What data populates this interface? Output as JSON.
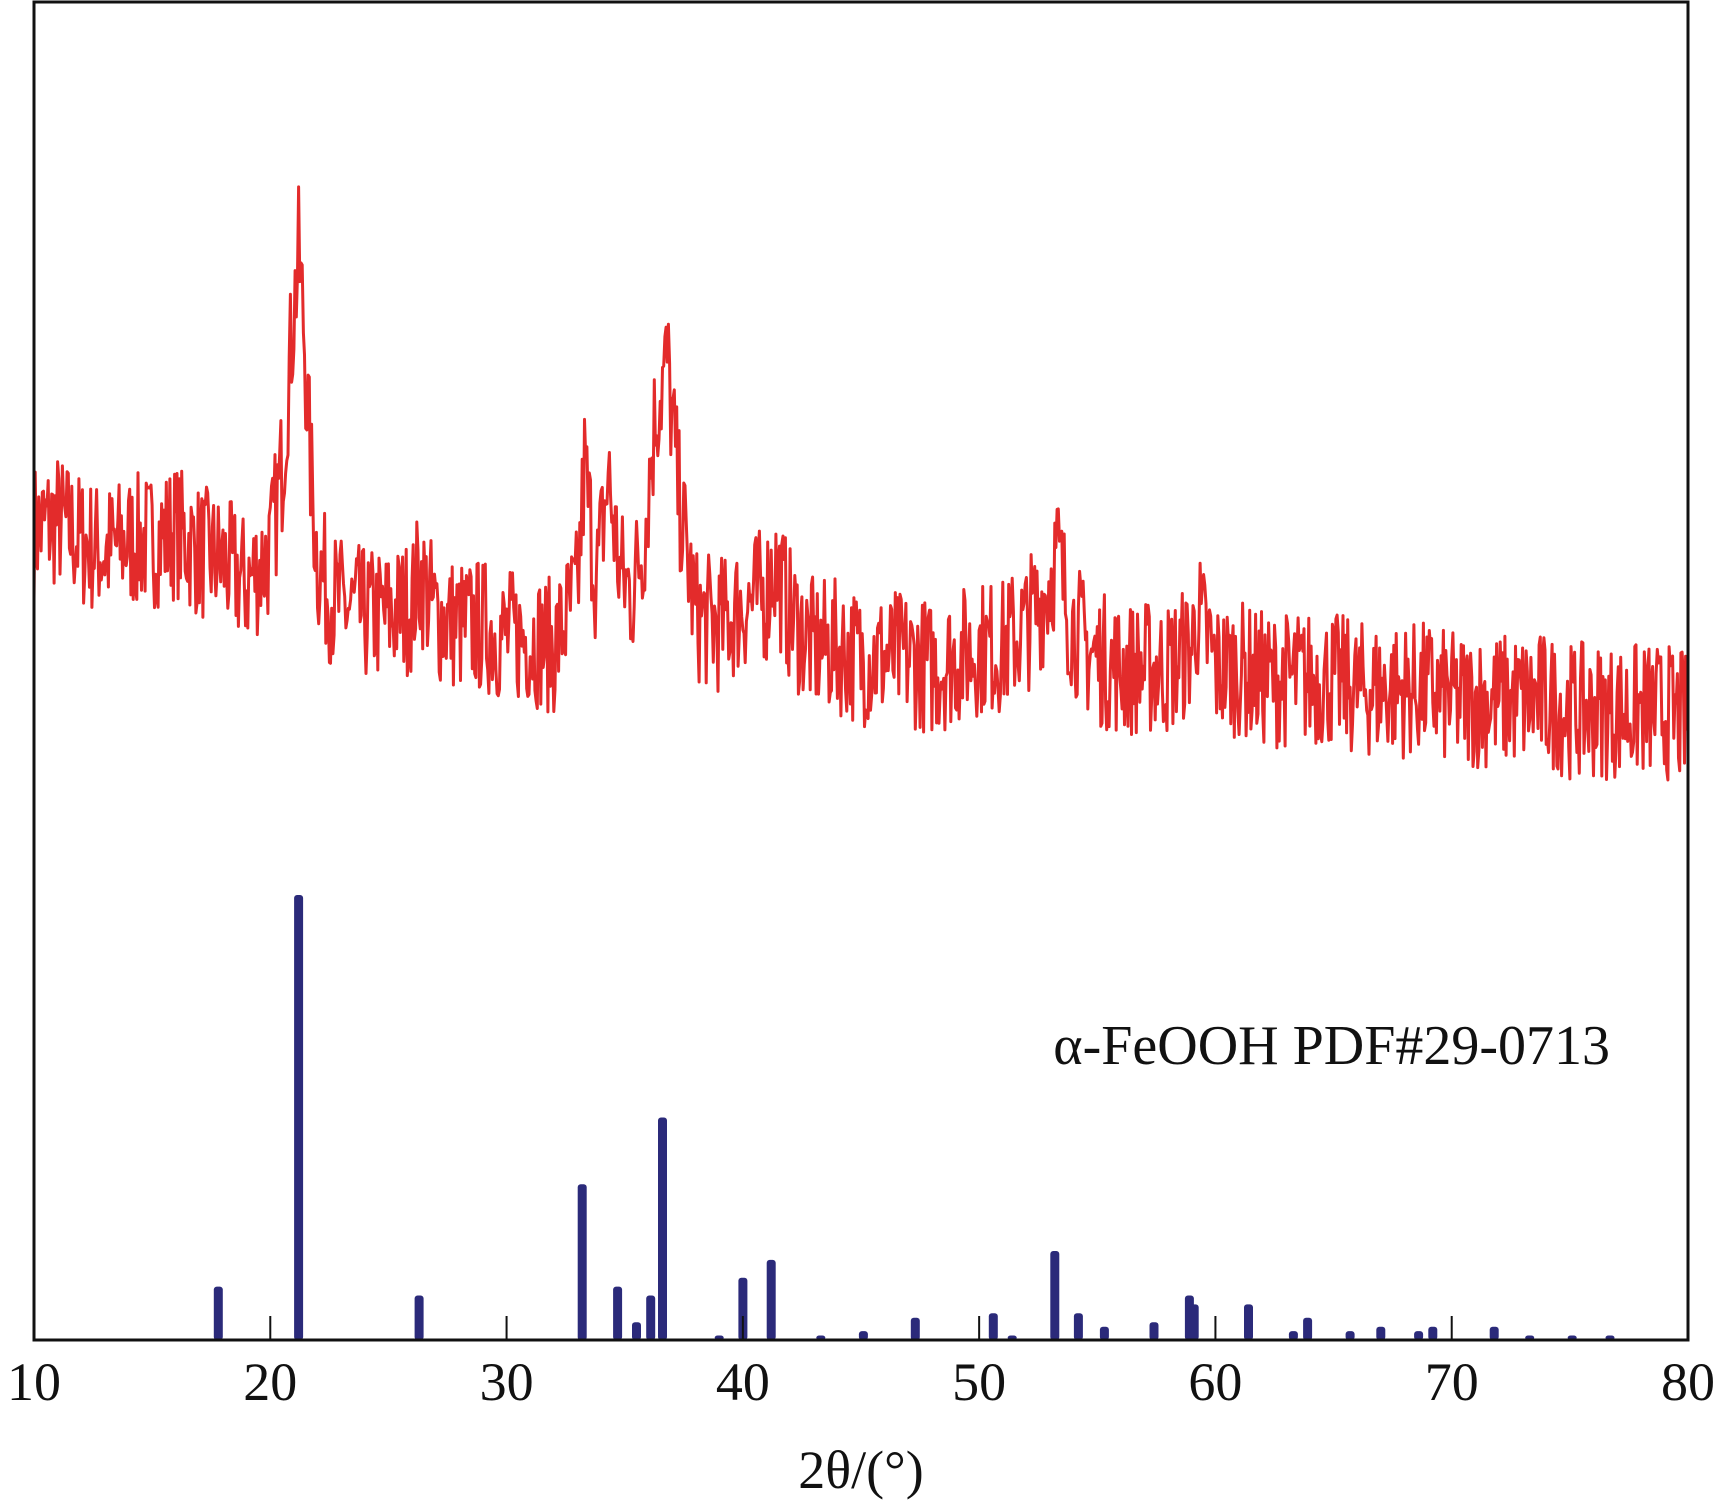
{
  "chart_data": {
    "type": "line",
    "title": "",
    "xlabel": "2θ/(°)",
    "ylabel": "",
    "xlim": [
      10,
      80
    ],
    "x_ticks": [
      10,
      20,
      30,
      40,
      50,
      60,
      70,
      80
    ],
    "y_ticks_shown": false,
    "grid": false,
    "legend": "none",
    "annotation": "α-FeOOH PDF#29-0713",
    "colors": {
      "pattern": "#e32b2b",
      "reference": "#2b2a7a",
      "axis": "#111111"
    },
    "series": [
      {
        "kind": "measured-xrd-pattern",
        "x": [
          10,
          11,
          12,
          13,
          14,
          15,
          16,
          17,
          18,
          19,
          20,
          20.5,
          21,
          21.2,
          21.4,
          21.7,
          22,
          22.5,
          23,
          24,
          25,
          26,
          26.3,
          27,
          28,
          29,
          30,
          31,
          32,
          33,
          33.3,
          33.8,
          34.3,
          34.8,
          35.3,
          35.8,
          36.3,
          36.8,
          37.3,
          38,
          39,
          40,
          41,
          41.3,
          42,
          43,
          44,
          45,
          46,
          47,
          48,
          49,
          50,
          51,
          52,
          52.8,
          53.3,
          53.8,
          54.5,
          55,
          56,
          57,
          58,
          59,
          59.2,
          59.8,
          60,
          61,
          62,
          63,
          64,
          65,
          66,
          67,
          68,
          69,
          70,
          71,
          72,
          73,
          74,
          75,
          76,
          77,
          78,
          79,
          80
        ],
        "y": [
          0.24,
          0.25,
          0.23,
          0.22,
          0.23,
          0.23,
          0.24,
          0.22,
          0.21,
          0.19,
          0.22,
          0.3,
          0.45,
          0.5,
          0.44,
          0.3,
          0.21,
          0.18,
          0.17,
          0.16,
          0.16,
          0.17,
          0.2,
          0.16,
          0.15,
          0.15,
          0.14,
          0.14,
          0.13,
          0.18,
          0.3,
          0.19,
          0.29,
          0.2,
          0.18,
          0.23,
          0.35,
          0.4,
          0.27,
          0.16,
          0.15,
          0.17,
          0.18,
          0.21,
          0.16,
          0.13,
          0.13,
          0.12,
          0.12,
          0.12,
          0.11,
          0.12,
          0.13,
          0.13,
          0.15,
          0.18,
          0.22,
          0.16,
          0.13,
          0.12,
          0.11,
          0.11,
          0.11,
          0.13,
          0.16,
          0.13,
          0.11,
          0.11,
          0.1,
          0.1,
          0.1,
          0.1,
          0.09,
          0.09,
          0.09,
          0.09,
          0.08,
          0.08,
          0.08,
          0.08,
          0.08,
          0.07,
          0.07,
          0.07,
          0.07,
          0.07,
          0.06
        ]
      },
      {
        "kind": "reference-stick-pattern",
        "x": [
          17.8,
          21.2,
          26.3,
          33.2,
          34.7,
          35.5,
          36.1,
          36.6,
          39.0,
          40.0,
          41.2,
          43.3,
          45.1,
          47.3,
          50.6,
          51.4,
          53.2,
          54.2,
          55.3,
          57.4,
          58.9,
          59.1,
          61.4,
          63.3,
          63.9,
          65.7,
          67.0,
          68.6,
          69.2,
          71.8,
          73.3,
          75.1,
          76.7
        ],
        "y": [
          12,
          100,
          10,
          35,
          12,
          4,
          10,
          50,
          1,
          14,
          18,
          1,
          2,
          5,
          6,
          1,
          20,
          6,
          3,
          4,
          10,
          8,
          8,
          2,
          5,
          2,
          3,
          2,
          3,
          3,
          1,
          1,
          1
        ]
      }
    ]
  }
}
